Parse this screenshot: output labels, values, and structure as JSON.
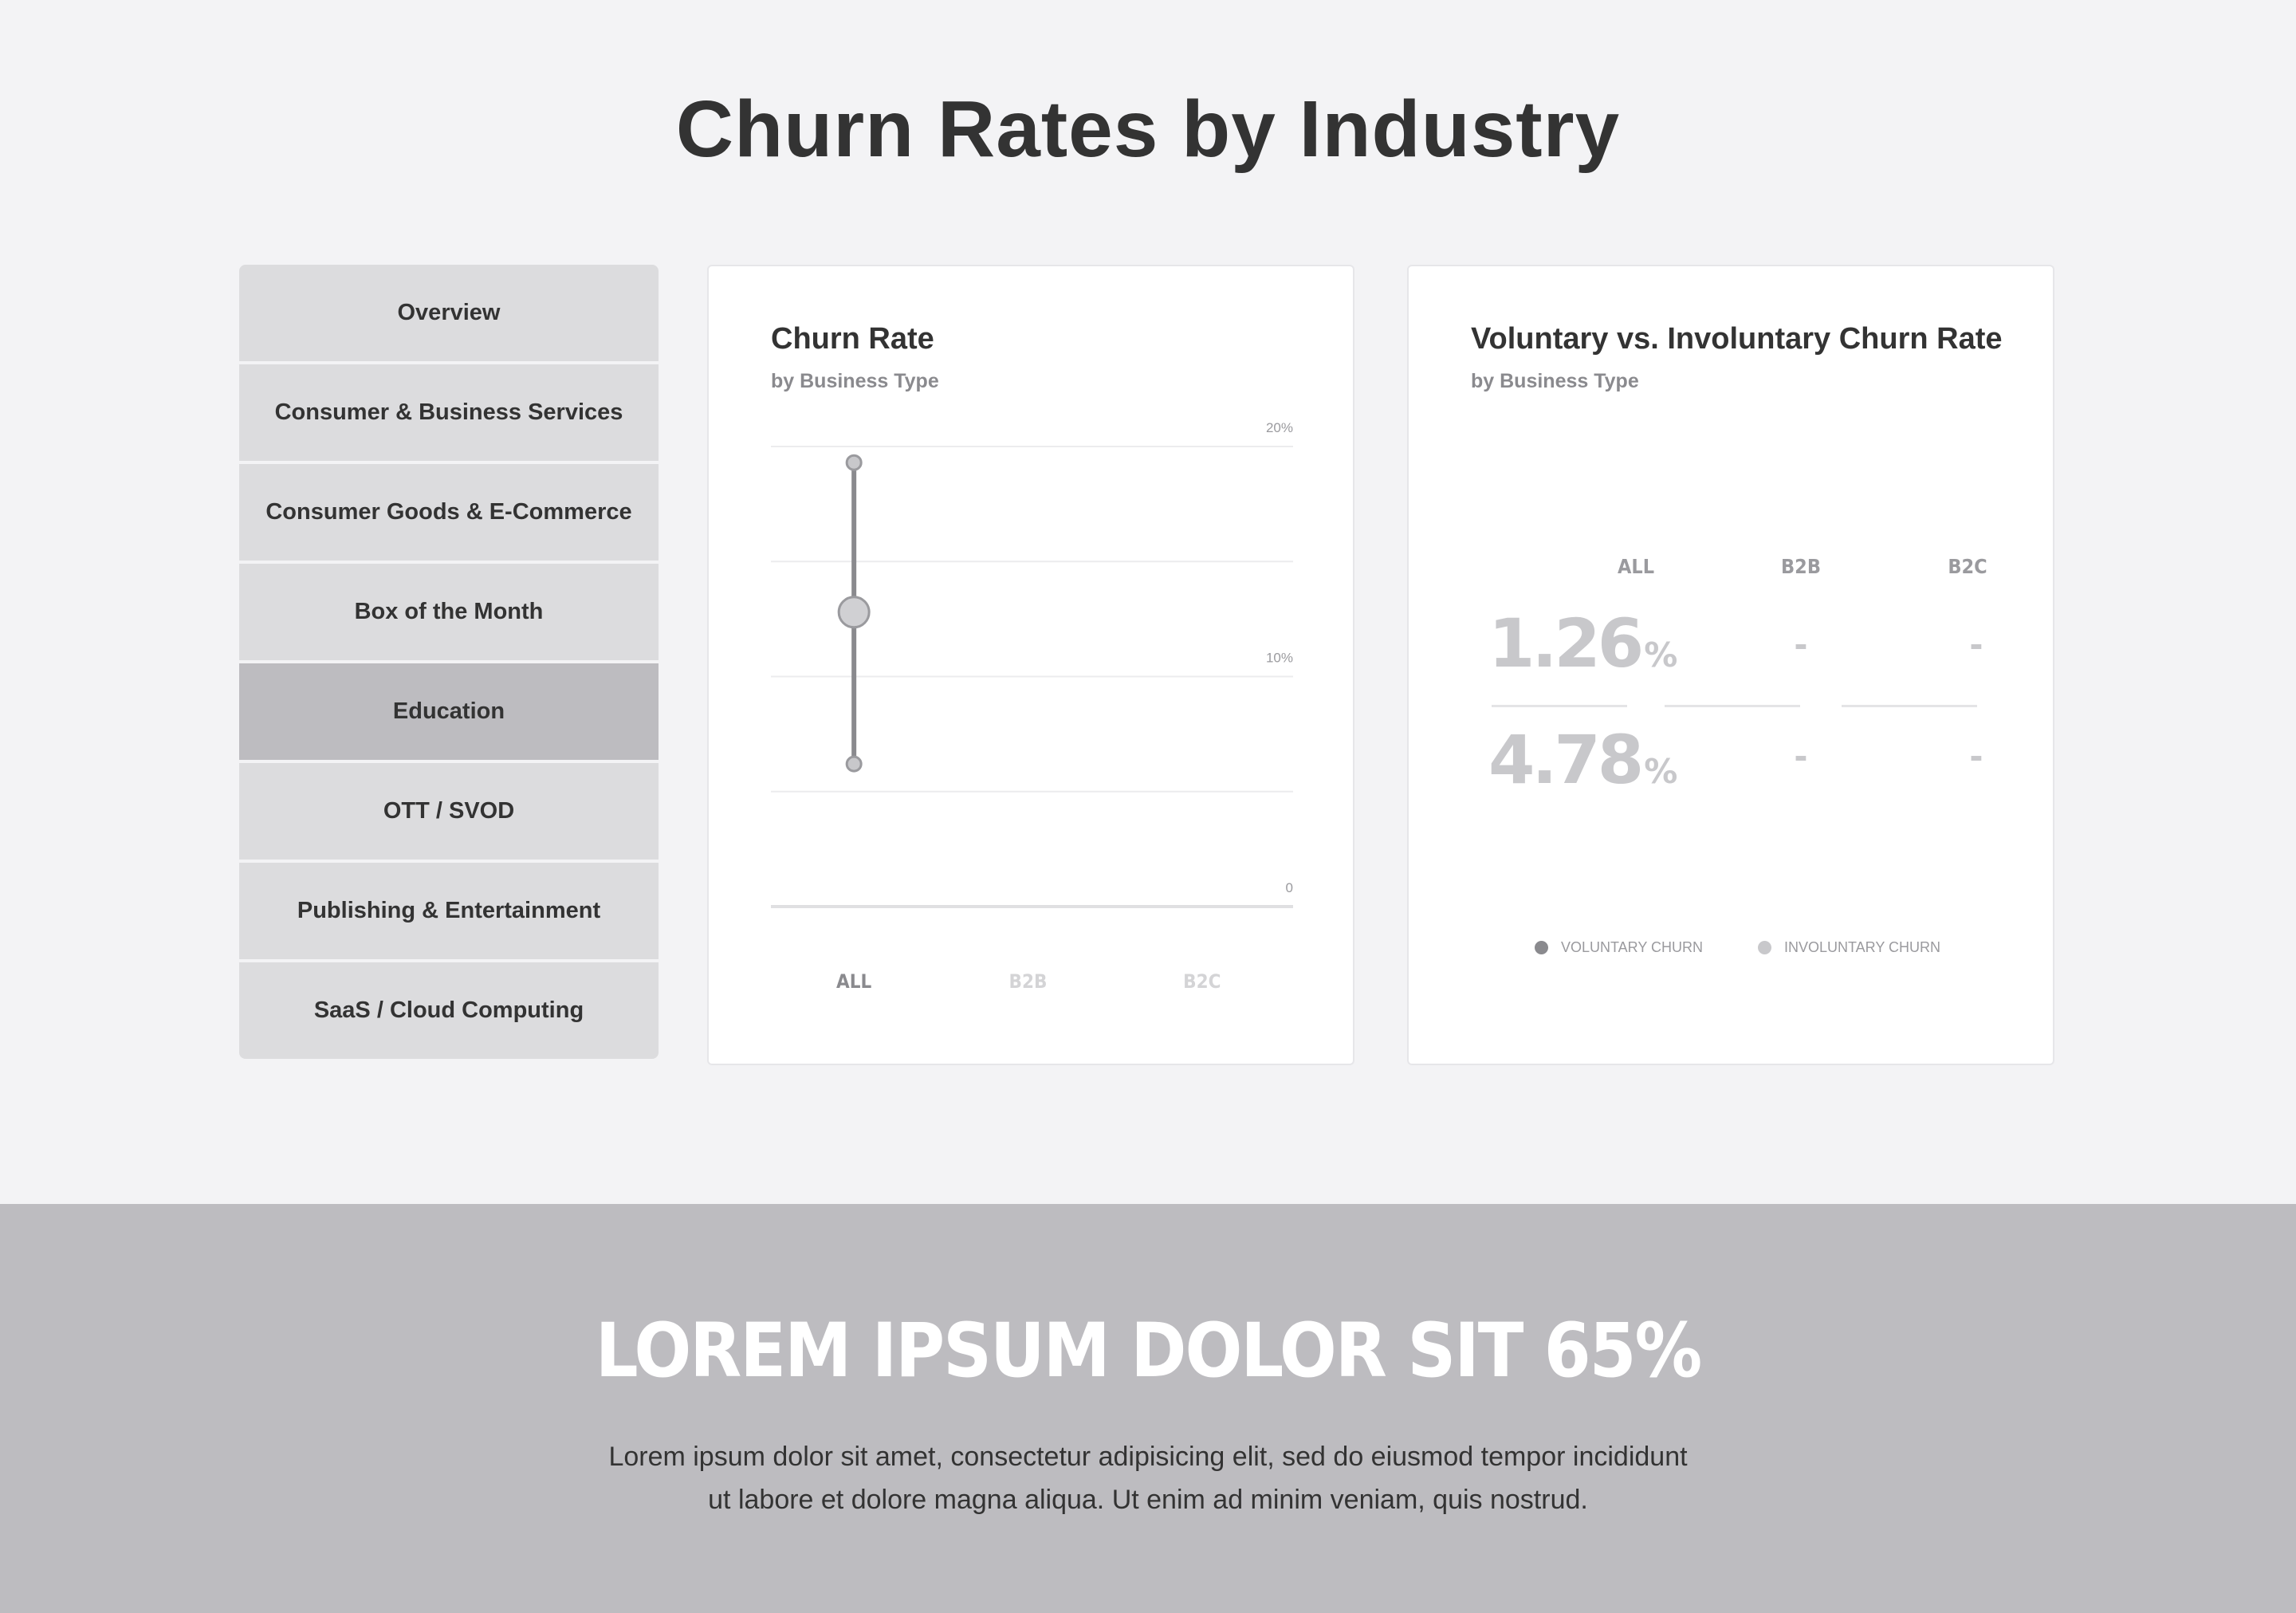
{
  "header": {
    "title": "Churn Rates by Industry"
  },
  "sidebar": {
    "items": [
      {
        "label": "Overview"
      },
      {
        "label": "Consumer & Business Services"
      },
      {
        "label": "Consumer Goods & E-Commerce"
      },
      {
        "label": "Box of the Month"
      },
      {
        "label": "Education",
        "active": true
      },
      {
        "label": "OTT / SVOD"
      },
      {
        "label": "Publishing & Entertainment"
      },
      {
        "label": "SaaS / Cloud Computing"
      }
    ]
  },
  "churn_card": {
    "title": "Churn Rate",
    "subtitle": "by Business Type"
  },
  "voluntary_card": {
    "title": "Voluntary vs. Involuntary Churn Rate",
    "subtitle": "by Business Type",
    "columns": [
      "ALL",
      "B2B",
      "B2C"
    ],
    "voluntary_all": "1.26",
    "involuntary_all": "4.78",
    "percent_sign": "%",
    "dash": "-",
    "legend": {
      "voluntary": "VOLUNTARY CHURN",
      "involuntary": "INVOLUNTARY CHURN"
    }
  },
  "colors": {
    "background": "#f3f3f5",
    "sidebar_item": "#dcdcde",
    "sidebar_active": "#bdbcc0",
    "voluntary_dot": "#8a8a8e",
    "involuntary_dot": "#c8c8cb",
    "banner": "#bdbcc0"
  },
  "chart_data": {
    "type": "scatter",
    "categories": [
      "ALL",
      "B2B",
      "B2C"
    ],
    "category_colors": [
      "#8a8a8e",
      "#d4d4d6",
      "#d4d4d6"
    ],
    "ylim": [
      0,
      20
    ],
    "y_tick_labels": [
      {
        "value": 20,
        "label": "20%"
      },
      {
        "value": 10,
        "label": "10%"
      },
      {
        "value": 0,
        "label": "0"
      }
    ],
    "gridlines": [
      20,
      15,
      10,
      5,
      0
    ],
    "ranges": [
      {
        "category": "ALL",
        "low": 6.2,
        "mid": 12.8,
        "high": 19.3
      }
    ]
  },
  "banner": {
    "title": "LOREM IPSUM DOLOR SIT 65%",
    "body_line1": "Lorem ipsum dolor sit amet, consectetur adipisicing elit, sed do eiusmod tempor incididunt",
    "body_line2": "ut labore et dolore magna aliqua. Ut enim ad minim veniam, quis nostrud."
  }
}
